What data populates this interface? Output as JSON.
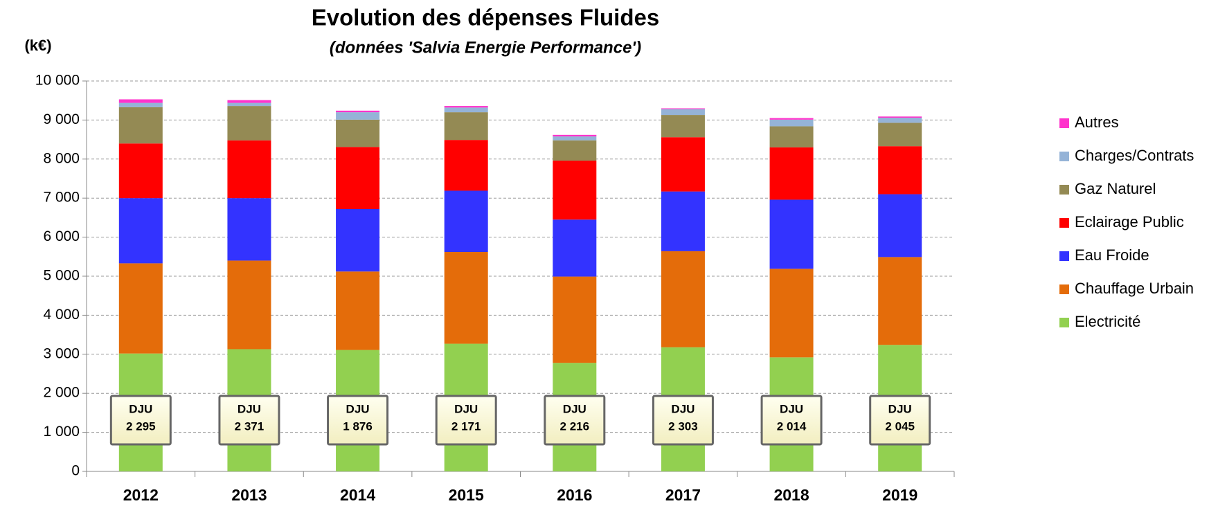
{
  "chart_data": {
    "type": "stacked_bar",
    "title": "Evolution des dépenses Fluides",
    "subtitle": "(données 'Salvia Energie Performance')",
    "y_label": "(k€)",
    "categories": [
      "2012",
      "2013",
      "2014",
      "2015",
      "2016",
      "2017",
      "2018",
      "2019"
    ],
    "series": [
      {
        "name": "Electricité",
        "color": "#92d050",
        "values": [
          3020,
          3130,
          3110,
          3270,
          2780,
          3180,
          2920,
          3240
        ]
      },
      {
        "name": "Chauffage Urbain",
        "color": "#e46c0a",
        "values": [
          2310,
          2270,
          2010,
          2350,
          2210,
          2460,
          2270,
          2250
        ]
      },
      {
        "name": "Eau Froide",
        "color": "#3333ff",
        "values": [
          1670,
          1600,
          1600,
          1570,
          1460,
          1530,
          1770,
          1610
        ]
      },
      {
        "name": "Eclairage Public",
        "color": "#ff0000",
        "values": [
          1400,
          1480,
          1590,
          1300,
          1510,
          1390,
          1340,
          1230
        ]
      },
      {
        "name": "Gaz Naturel",
        "color": "#948a54",
        "values": [
          930,
          880,
          700,
          710,
          520,
          570,
          540,
          600
        ]
      },
      {
        "name": "Charges/Contrats",
        "color": "#95b3d7",
        "values": [
          110,
          80,
          190,
          120,
          100,
          150,
          170,
          130
        ]
      },
      {
        "name": "Autres",
        "color": "#ff33cc",
        "values": [
          90,
          70,
          40,
          40,
          40,
          20,
          40,
          30
        ]
      }
    ],
    "dju_label": "DJU",
    "dju": [
      "2 295",
      "2 371",
      "1 876",
      "2 171",
      "2 216",
      "2 303",
      "2 014",
      "2 045"
    ],
    "ylim": [
      0,
      10000
    ],
    "yticks": [
      0,
      {
        "value": 1000,
        "label": "1 000"
      },
      {
        "value": 2000,
        "label": "2 000"
      },
      {
        "value": 3000,
        "label": "3 000"
      },
      {
        "value": 4000,
        "label": "4 000"
      },
      {
        "value": 5000,
        "label": "5 000"
      },
      {
        "value": 6000,
        "label": "6 000"
      },
      {
        "value": 7000,
        "label": "7 000"
      },
      {
        "value": 8000,
        "label": "8 000"
      },
      {
        "value": 9000,
        "label": "9 000"
      },
      {
        "value": 10000,
        "label": "10 000"
      }
    ],
    "grid": true
  }
}
